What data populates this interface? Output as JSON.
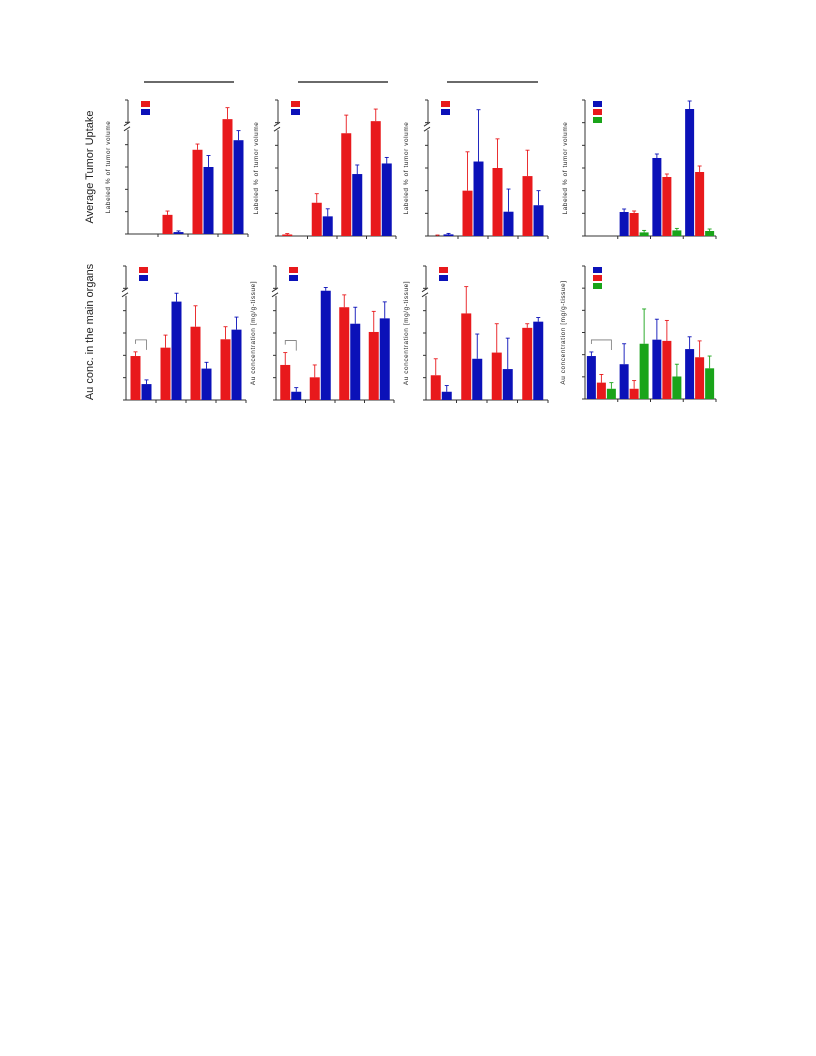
{
  "figure": {
    "row_labels": [
      "Average Tumor Uptake",
      "Au conc. in the main organs"
    ],
    "colors": {
      "red": "#e8191c",
      "blue": "#0b11b8",
      "green": "#1aa41a",
      "axis": "#333333"
    }
  },
  "chart_data": [
    {
      "type": "bar",
      "row": 1,
      "col": 1,
      "ylabel": "Labeled % of tumor volume",
      "categories": [
        "",
        "",
        "",
        ""
      ],
      "series": [
        {
          "color": "red",
          "values": [
            0,
            10,
            44,
            60
          ],
          "errors": [
            0,
            2,
            3,
            6
          ]
        },
        {
          "color": "blue",
          "values": [
            0,
            1,
            35,
            49
          ],
          "errors": [
            0,
            0.6,
            6,
            5
          ]
        }
      ],
      "ylim": [
        0,
        70
      ],
      "break": true
    },
    {
      "type": "bar",
      "row": 1,
      "col": 2,
      "ylabel": "Labeled % of tumor volume",
      "categories": [
        "",
        "",
        "",
        ""
      ],
      "series": [
        {
          "color": "red",
          "values": [
            0.5,
            11,
            34,
            38
          ],
          "errors": [
            0.3,
            3,
            6,
            4
          ]
        },
        {
          "color": "blue",
          "values": [
            0,
            6.5,
            20.5,
            24
          ],
          "errors": [
            0,
            2.5,
            3,
            2
          ]
        }
      ],
      "ylim": [
        0,
        45
      ],
      "break": true
    },
    {
      "type": "bar",
      "row": 1,
      "col": 3,
      "ylabel": "Labeled % of tumor volume",
      "categories": [
        "",
        "",
        "",
        ""
      ],
      "series": [
        {
          "color": "red",
          "values": [
            0,
            14,
            21,
            18.5
          ],
          "errors": [
            0.3,
            12,
            9,
            8
          ]
        },
        {
          "color": "blue",
          "values": [
            0.5,
            23,
            7.5,
            9.5
          ],
          "errors": [
            0.3,
            16,
            7,
            4.5
          ]
        }
      ],
      "ylim": [
        0,
        42
      ],
      "break": true
    },
    {
      "type": "bar",
      "row": 1,
      "col": 4,
      "ylabel": "Labeled % of tumor volume",
      "categories": [
        "",
        "",
        "",
        ""
      ],
      "series": [
        {
          "color": "blue",
          "values": [
            0,
            12,
            39,
            63.5
          ],
          "errors": [
            0,
            1.5,
            2,
            4
          ]
        },
        {
          "color": "red",
          "values": [
            0,
            11.5,
            29.5,
            32
          ],
          "errors": [
            0,
            1,
            1.5,
            3
          ]
        },
        {
          "color": "green",
          "values": [
            0,
            1.8,
            2.8,
            2.5
          ],
          "errors": [
            0,
            1,
            1,
            1
          ]
        }
      ],
      "ylim": [
        0,
        68
      ],
      "break": false
    },
    {
      "type": "bar",
      "row": 2,
      "col": 1,
      "ylabel": "",
      "categories": [
        "",
        "",
        "",
        ""
      ],
      "series": [
        {
          "color": "red",
          "values": [
            10.5,
            12.5,
            17.5,
            14.5
          ],
          "errors": [
            1,
            3,
            5,
            3
          ]
        },
        {
          "color": "blue",
          "values": [
            3.8,
            23.5,
            7.5,
            16.8
          ],
          "errors": [
            1,
            2,
            1.5,
            3
          ]
        }
      ],
      "ylim": [
        0,
        32
      ],
      "break": true,
      "bracket": true
    },
    {
      "type": "bar",
      "row": 2,
      "col": 2,
      "ylabel": "Au concentration [mg/g-tissue]",
      "categories": [
        "",
        "",
        "",
        ""
      ],
      "series": [
        {
          "color": "red",
          "values": [
            8.5,
            5.5,
            22.5,
            16.5
          ],
          "errors": [
            3,
            3,
            3,
            5
          ]
        },
        {
          "color": "blue",
          "values": [
            2,
            26.5,
            18.5,
            19.8
          ],
          "errors": [
            1,
            0.8,
            4,
            4
          ]
        }
      ],
      "ylim": [
        0,
        32.5
      ],
      "break": true,
      "bracket": true
    },
    {
      "type": "bar",
      "row": 2,
      "col": 3,
      "ylabel": "Au concentration [mg/g-tissue]",
      "categories": [
        "",
        "",
        "",
        ""
      ],
      "series": [
        {
          "color": "red",
          "values": [
            6,
            21,
            11.5,
            17.5
          ],
          "errors": [
            4,
            6.5,
            7,
            1
          ]
        },
        {
          "color": "blue",
          "values": [
            2,
            10,
            7.5,
            19
          ],
          "errors": [
            1.5,
            6,
            7.5,
            1
          ]
        }
      ],
      "ylim": [
        0,
        32.5
      ],
      "break": true
    },
    {
      "type": "bar",
      "row": 2,
      "col": 4,
      "ylabel": "Au concentration [mg/g-tissue]",
      "categories": [
        "",
        "",
        "",
        ""
      ],
      "series": [
        {
          "color": "blue",
          "values": [
            10.5,
            8.5,
            14.5,
            12.2
          ],
          "errors": [
            1,
            5,
            5,
            3
          ]
        },
        {
          "color": "red",
          "values": [
            4,
            2.5,
            14.2,
            10.2
          ],
          "errors": [
            2,
            2,
            5,
            4
          ]
        },
        {
          "color": "green",
          "values": [
            2.5,
            13.5,
            5.5,
            7.5
          ],
          "errors": [
            1.5,
            8.5,
            3,
            3
          ]
        }
      ],
      "ylim": [
        0,
        32.5
      ],
      "break": false,
      "bracket": true
    }
  ]
}
